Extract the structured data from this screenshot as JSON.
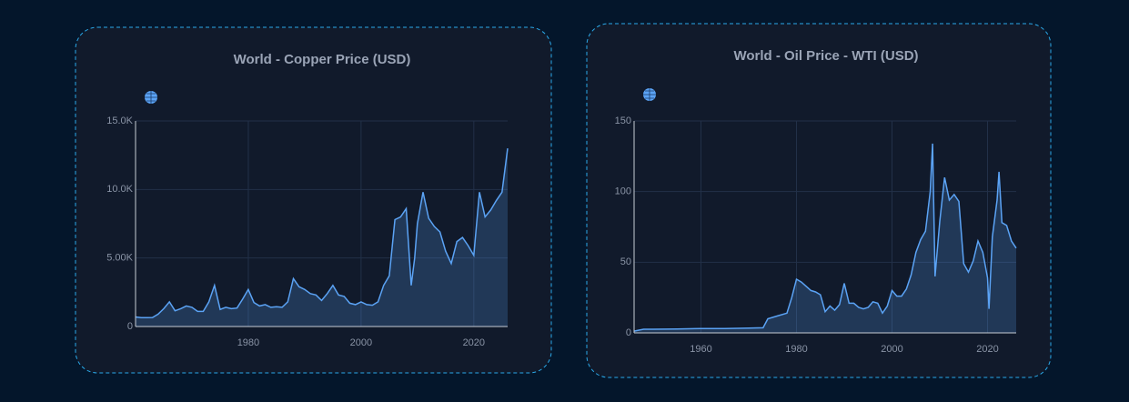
{
  "chart_data": [
    {
      "type": "line",
      "title": "World - Copper Price (USD)",
      "color": "#5ba3f5",
      "area": true,
      "grid": true,
      "x": [
        1960,
        1961,
        1962,
        1963,
        1964,
        1965,
        1966,
        1967,
        1968,
        1969,
        1970,
        1971,
        1972,
        1973,
        1974,
        1975,
        1976,
        1977,
        1978,
        1979,
        1980,
        1981,
        1982,
        1983,
        1984,
        1985,
        1986,
        1987,
        1988,
        1989,
        1990,
        1991,
        1992,
        1993,
        1994,
        1995,
        1996,
        1997,
        1998,
        1999,
        2000,
        2001,
        2002,
        2003,
        2004,
        2005,
        2006,
        2007,
        2008,
        2008.9,
        2009.5,
        2010,
        2011,
        2012,
        2013,
        2014,
        2015,
        2016,
        2017,
        2018,
        2019,
        2020,
        2021,
        2022,
        2023,
        2024,
        2025,
        2026
      ],
      "values": [
        700,
        650,
        650,
        660,
        900,
        1300,
        1800,
        1150,
        1300,
        1500,
        1400,
        1100,
        1100,
        1800,
        3000,
        1250,
        1400,
        1300,
        1350,
        2000,
        2700,
        1750,
        1500,
        1600,
        1400,
        1450,
        1400,
        1800,
        3500,
        2900,
        2700,
        2400,
        2300,
        1900,
        2400,
        3000,
        2300,
        2200,
        1700,
        1600,
        1800,
        1600,
        1550,
        1800,
        3000,
        3700,
        7800,
        8000,
        8600,
        3000,
        5000,
        7500,
        9800,
        7900,
        7300,
        6900,
        5500,
        4600,
        6200,
        6500,
        5900,
        5200,
        9800,
        8000,
        8500,
        9200,
        9800,
        13000
      ],
      "xlim": [
        1960,
        2026
      ],
      "ylim": [
        0,
        15000
      ],
      "xticks": [
        1980,
        2000,
        2020
      ],
      "yticks": [
        0,
        {
          "value": 5000,
          "label": "5.00K"
        },
        {
          "value": 10000,
          "label": "10.0K"
        },
        {
          "value": 15000,
          "label": "15.0K"
        }
      ]
    },
    {
      "type": "line",
      "title": "World - Oil Price - WTI (USD)",
      "color": "#5ba3f5",
      "area": true,
      "grid": true,
      "x": [
        1946,
        1947,
        1948,
        1950,
        1955,
        1960,
        1965,
        1970,
        1973,
        1974,
        1976,
        1978,
        1979,
        1980,
        1981,
        1982,
        1983,
        1984,
        1985,
        1986,
        1987,
        1988,
        1989,
        1990,
        1991,
        1992,
        1993,
        1994,
        1995,
        1996,
        1997,
        1998,
        1999,
        2000,
        2001,
        2002,
        2003,
        2004,
        2005,
        2006,
        2007,
        2008,
        2008.5,
        2009,
        2010,
        2011,
        2012,
        2013,
        2014,
        2015,
        2016,
        2017,
        2018,
        2019,
        2020,
        2020.3,
        2021,
        2022,
        2022.4,
        2023,
        2024,
        2025,
        2026
      ],
      "values": [
        1.2,
        1.9,
        2.6,
        2.6,
        2.8,
        3,
        3,
        3.4,
        3.6,
        10,
        12,
        14,
        25,
        38,
        36,
        33,
        30,
        29,
        27,
        15,
        19,
        16,
        20,
        35,
        21,
        21,
        18,
        17,
        18,
        22,
        21,
        14,
        19,
        30,
        26,
        26,
        31,
        41,
        57,
        66,
        72,
        100,
        134,
        40,
        79,
        110,
        94,
        98,
        93,
        49,
        43,
        51,
        65,
        57,
        39,
        17,
        68,
        94,
        114,
        78,
        76,
        65,
        60
      ],
      "xlim": [
        1946,
        2026
      ],
      "ylim": [
        0,
        150
      ],
      "xticks": [
        1960,
        1980,
        2000,
        2020
      ],
      "yticks": [
        0,
        50,
        100,
        150
      ]
    }
  ]
}
